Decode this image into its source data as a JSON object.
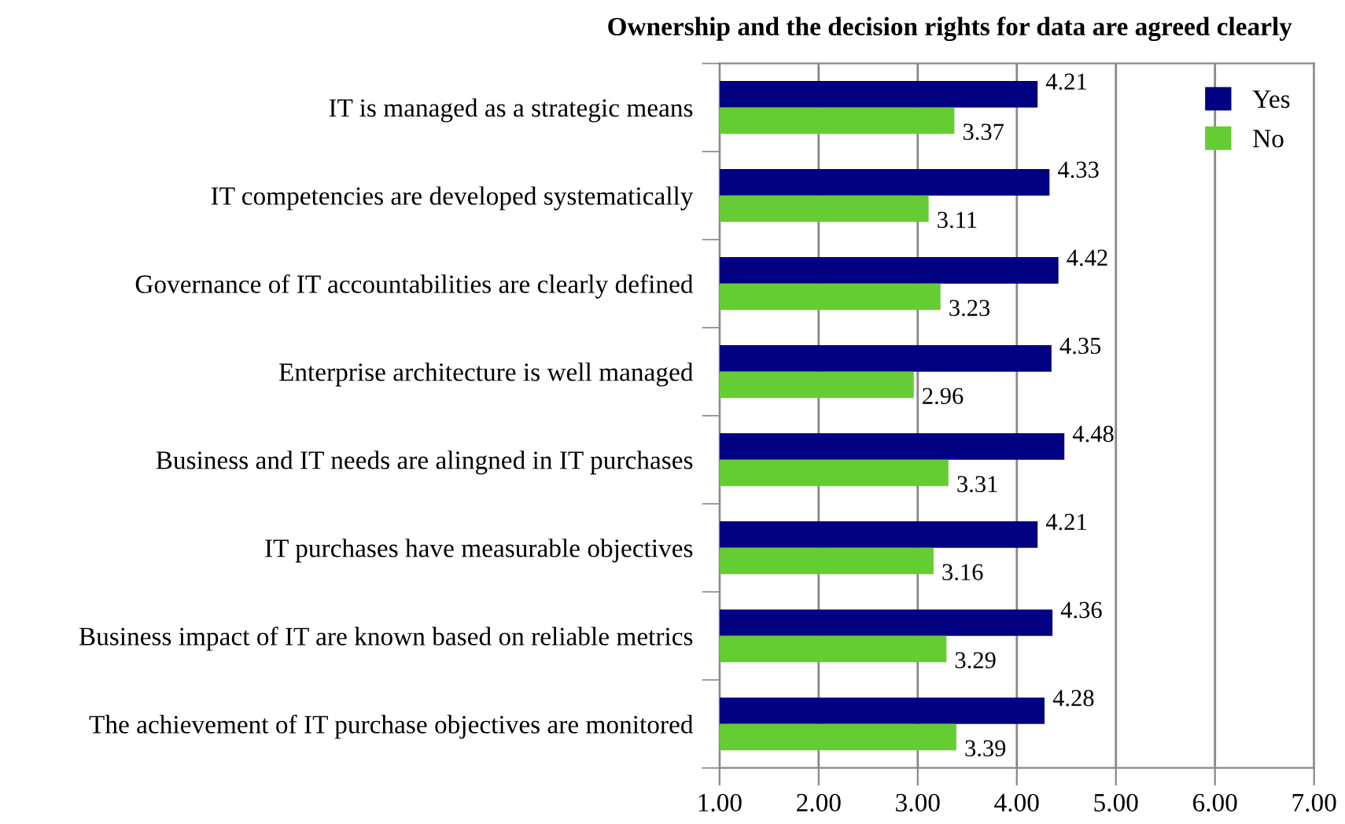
{
  "chart_data": {
    "type": "bar",
    "orientation": "horizontal",
    "title": "Ownership and the decision rights for data are agreed clearly",
    "categories": [
      "IT is managed as a strategic means",
      "IT competencies are developed systematically",
      "Governance of IT accountabilities are clearly defined",
      "Enterprise architecture is well managed",
      "Business and IT needs are alingned in IT purchases",
      "IT purchases have measurable objectives",
      "Business impact of IT are known based on reliable metrics",
      "The achievement of IT purchase objectives are monitored"
    ],
    "series": [
      {
        "name": "Yes",
        "color": "#000080",
        "values": [
          4.21,
          4.33,
          4.42,
          4.35,
          4.48,
          4.21,
          4.36,
          4.28
        ]
      },
      {
        "name": "No",
        "color": "#66cc33",
        "values": [
          3.37,
          3.11,
          3.23,
          2.96,
          3.31,
          3.16,
          3.29,
          3.39
        ]
      }
    ],
    "xlim": [
      1,
      7
    ],
    "xticks": [
      {
        "value": 1,
        "label": "1.00"
      },
      {
        "value": 2,
        "label": "2.00"
      },
      {
        "value": 3,
        "label": "3.00"
      },
      {
        "value": 4,
        "label": "4.00"
      },
      {
        "value": 5,
        "label": "5.00"
      },
      {
        "value": 6,
        "label": "6.00"
      },
      {
        "value": 7,
        "label": "7.00"
      }
    ],
    "grid": "x",
    "legend": "top right",
    "data_labels": true
  }
}
